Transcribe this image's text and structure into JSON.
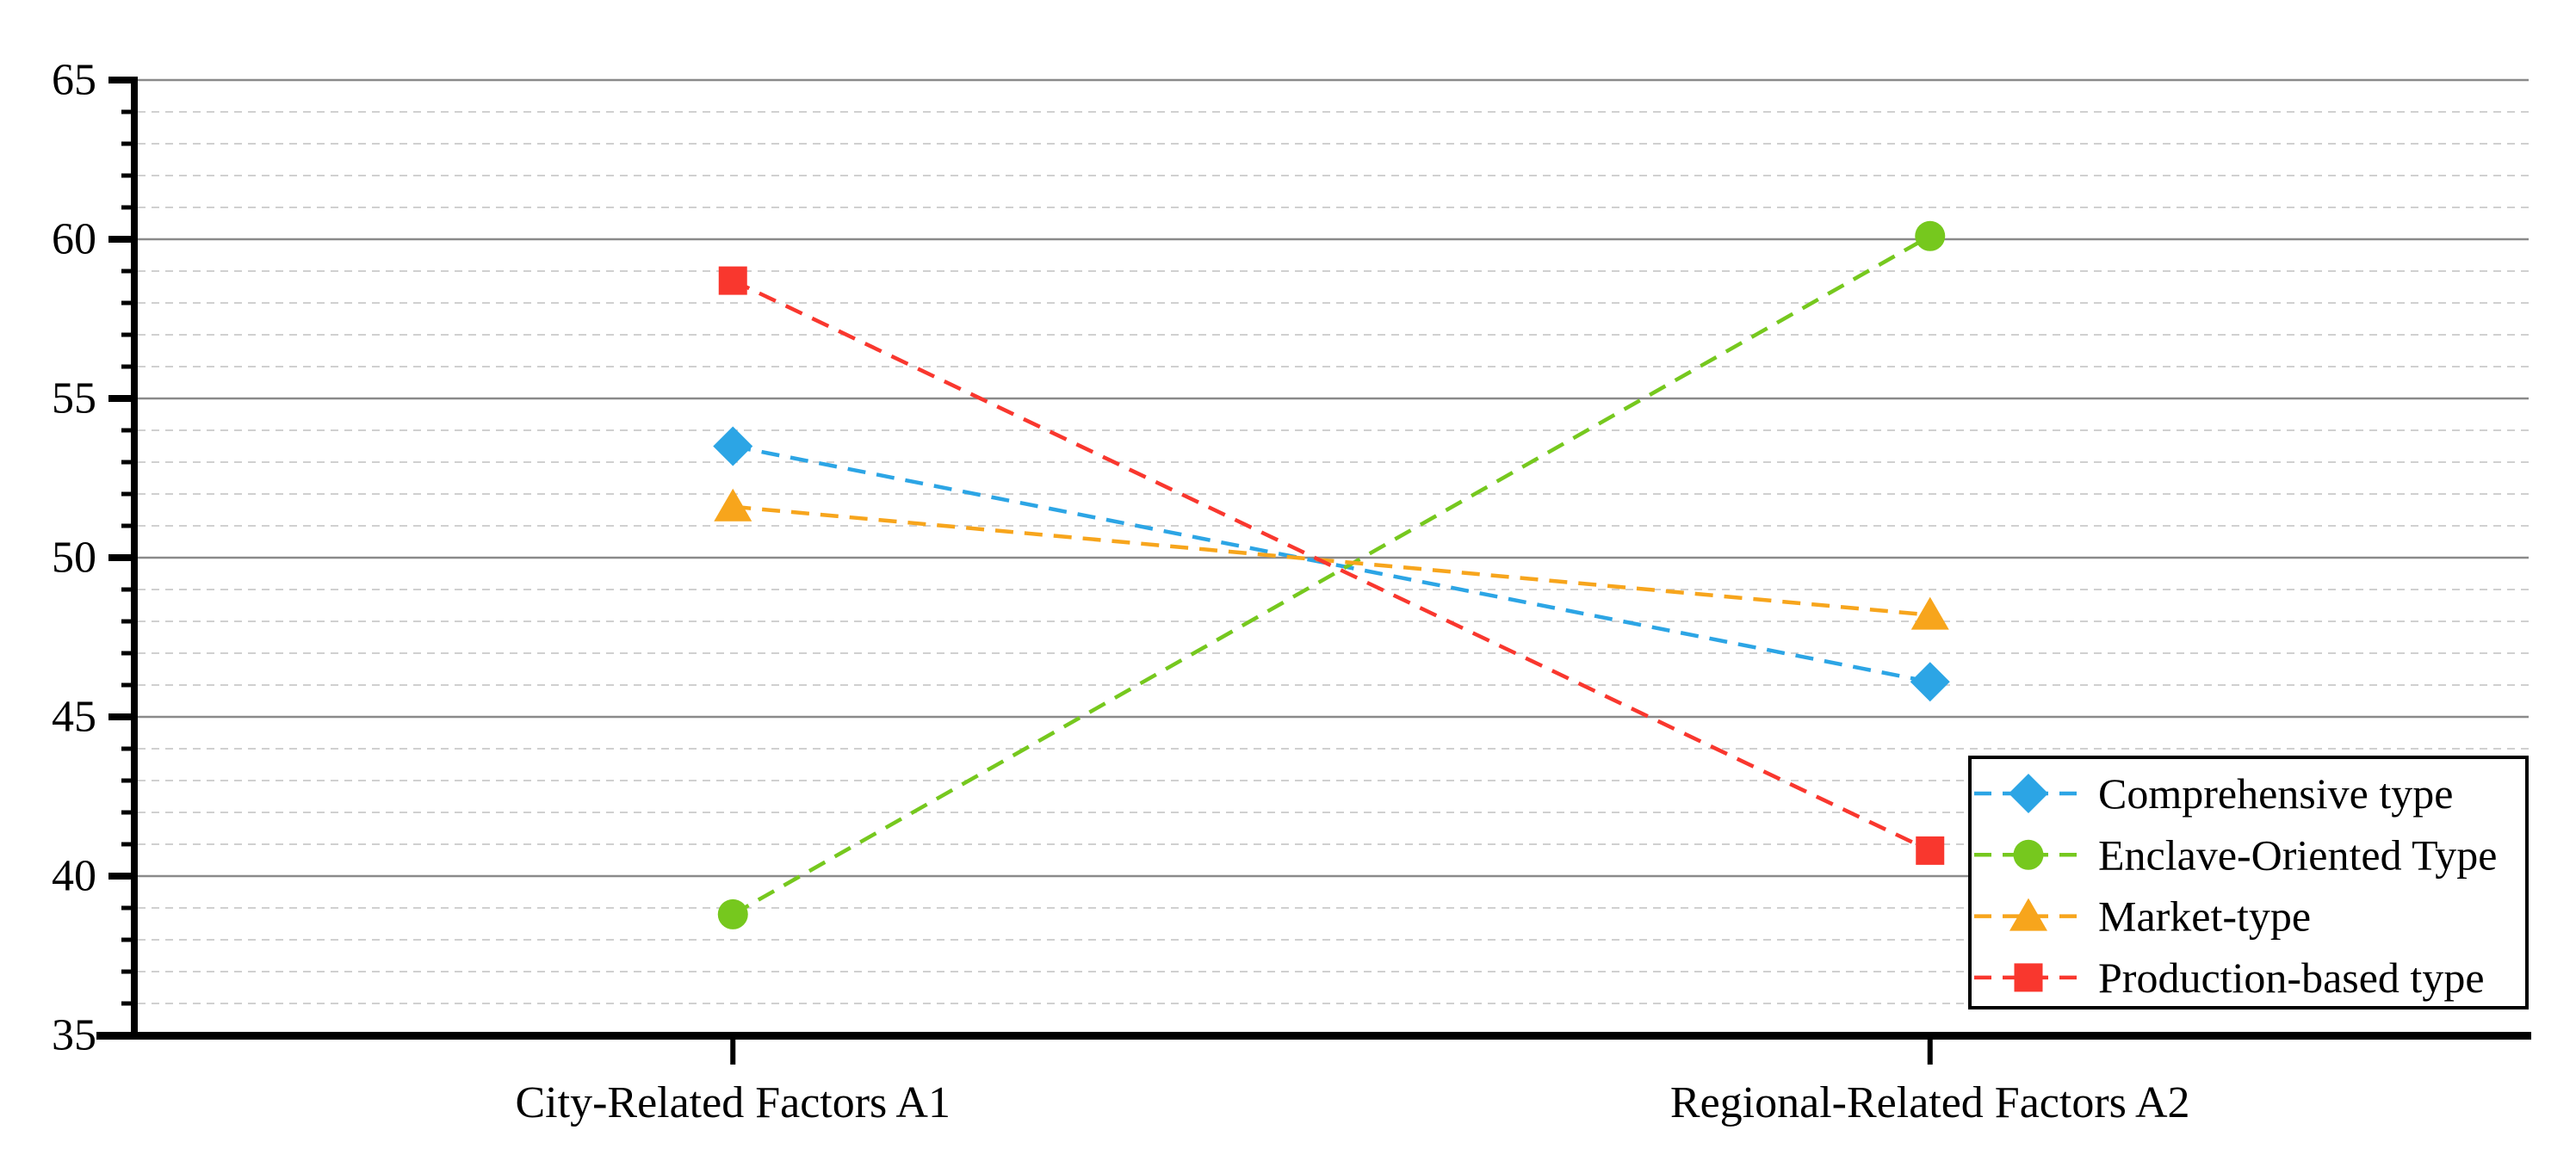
{
  "chart_data": {
    "type": "line",
    "title": "",
    "xlabel": "",
    "ylabel": "",
    "categories": [
      "City-Related Factors A1",
      "Regional-Related Factors A2"
    ],
    "series": [
      {
        "name": "Comprehensive type",
        "marker": "diamond",
        "color": "#2CA5E5",
        "values": [
          53.5,
          46.1
        ]
      },
      {
        "name": "Enclave-Oriented Type",
        "marker": "circle",
        "color": "#76C81E",
        "values": [
          38.8,
          60.1
        ]
      },
      {
        "name": "Market-type",
        "marker": "triangle",
        "color": "#F7A51C",
        "values": [
          51.6,
          48.2
        ]
      },
      {
        "name": "Production-based type",
        "marker": "square",
        "color": "#F9372E",
        "values": [
          58.7,
          40.8
        ]
      }
    ],
    "ylim": [
      35,
      65
    ],
    "y_major_step": 5,
    "y_minor_step": 1,
    "y_tick_values": [
      35,
      40,
      45,
      50,
      55,
      60,
      65
    ],
    "y_tick_labels": [
      "35",
      "40",
      "45",
      "50",
      "55",
      "60",
      "65"
    ],
    "line_style": "dashed",
    "grid": {
      "major": "solid-gray",
      "minor": "dashed-light-gray"
    },
    "legend": {
      "position": "inside-right-middle",
      "entries": [
        "Comprehensive type",
        "Enclave-Oriented Type",
        "Market-type",
        "Production-based type"
      ]
    },
    "style": {
      "background": "#FFFFFF",
      "axis_color": "#000000",
      "text_color": "#000000",
      "major_grid_color": "#8A8A8A",
      "minor_grid_color": "#C9C9C9",
      "legend_border_color": "#000000",
      "legend_fill": "#FFFFFF"
    }
  }
}
